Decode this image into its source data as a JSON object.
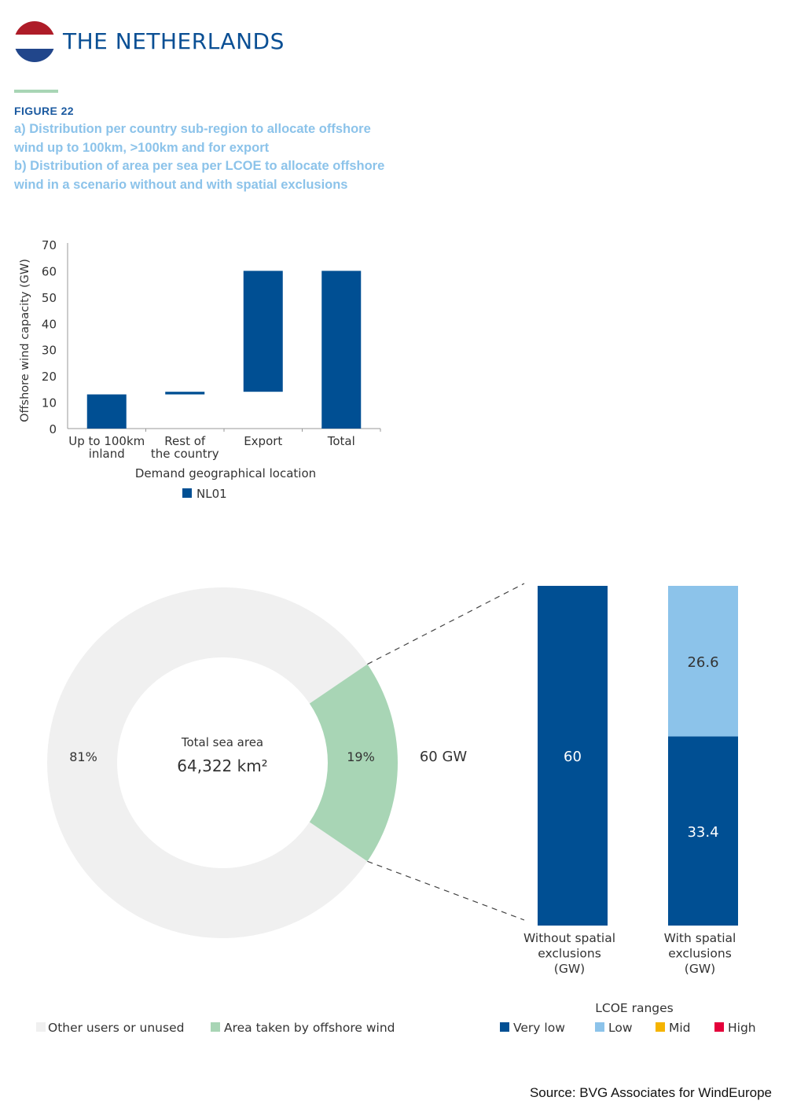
{
  "header": {
    "country": "THE NETHERLANDS",
    "flag_colors": [
      "#ae1c28",
      "#ffffff",
      "#21468b"
    ],
    "accent_color": "#a8d5b5"
  },
  "figure": {
    "label": "FIGURE 22",
    "caption_a": "a) Distribution per country sub-region to allocate offshore wind up to 100km, >100km and for export",
    "caption_b": "b) Distribution of area per sea per LCOE to allocate offshore wind in a scenario without and with spatial exclusions"
  },
  "chart_data": [
    {
      "type": "bar",
      "subtype": "floating-waterfall",
      "categories": [
        [
          "Up to 100km",
          "inland"
        ],
        [
          "Rest of",
          "the country"
        ],
        [
          "Export"
        ],
        [
          "Total"
        ]
      ],
      "series": [
        {
          "name": "NL01",
          "color": "#004f93",
          "ranges": [
            [
              0,
              13
            ],
            [
              13,
              14
            ],
            [
              14,
              60
            ],
            [
              0,
              60
            ]
          ]
        }
      ],
      "xlabel": "Demand geographical location",
      "ylabel": "Offshore wind capacity (GW)",
      "ylim": [
        0,
        70
      ],
      "yticks": [
        0,
        10,
        20,
        30,
        40,
        50,
        60,
        70
      ],
      "legend_position": "bottom"
    },
    {
      "type": "pie",
      "subtype": "donut",
      "center_title": "Total sea area",
      "center_value": "64,322 km²",
      "slices": [
        {
          "name": "Other users or unused",
          "value": 81,
          "label": "81%",
          "color": "#f0f0f0"
        },
        {
          "name": "Area taken by offshore wind",
          "value": 19,
          "label": "19%",
          "color": "#a8d5b5"
        }
      ],
      "callout": "60 GW"
    },
    {
      "type": "bar",
      "subtype": "stacked",
      "categories": [
        [
          "Without spatial",
          "exclusions",
          "(GW)"
        ],
        [
          "With spatial",
          "exclusions",
          "(GW)"
        ]
      ],
      "series": [
        {
          "name": "Very low",
          "color": "#004f93",
          "values": [
            60,
            33.4
          ],
          "labels": [
            "60",
            "33.4"
          ]
        },
        {
          "name": "Low",
          "color": "#8cc3ea",
          "values": [
            0,
            26.6
          ],
          "labels": [
            "",
            "26.6"
          ]
        },
        {
          "name": "Mid",
          "color": "#f5b400",
          "values": [
            0,
            0
          ],
          "labels": [
            "",
            ""
          ]
        },
        {
          "name": "High",
          "color": "#e4003a",
          "values": [
            0,
            0
          ],
          "labels": [
            "",
            ""
          ]
        }
      ],
      "legend_title": "LCOE ranges"
    }
  ],
  "source": "Source: BVG Associates for WindEurope"
}
